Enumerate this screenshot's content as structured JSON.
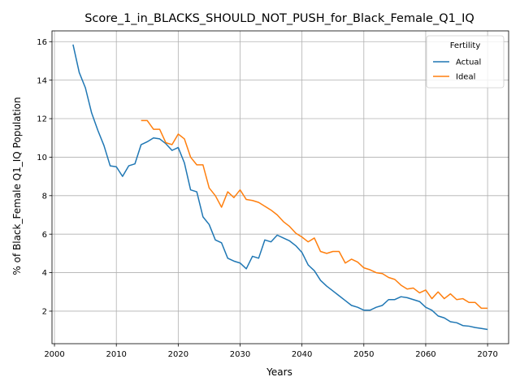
{
  "chart_data": {
    "type": "line",
    "title": "Score_1_in_BLACKS_SHOULD_NOT_PUSH_for_Black_Female_Q1_IQ",
    "xlabel": "Years",
    "ylabel": "% of Black_Female Q1_IQ Population",
    "xlim": [
      1999.6,
      2073.4
    ],
    "ylim": [
      0.31,
      16.56
    ],
    "xticks": [
      2000,
      2010,
      2020,
      2030,
      2040,
      2050,
      2060,
      2070
    ],
    "yticks": [
      2,
      4,
      6,
      8,
      10,
      12,
      14,
      16
    ],
    "grid": true,
    "legend": {
      "title": "Fertility",
      "placement": "top-right"
    },
    "series": [
      {
        "name": "Actual",
        "color": "#1f77b4",
        "x": [
          2003,
          2004,
          2005,
          2006,
          2007,
          2008,
          2009,
          2010,
          2011,
          2012,
          2013,
          2014,
          2015,
          2016,
          2017,
          2018,
          2019,
          2020,
          2021,
          2022,
          2023,
          2024,
          2025,
          2026,
          2027,
          2028,
          2029,
          2030,
          2031,
          2032,
          2033,
          2034,
          2035,
          2036,
          2037,
          2038,
          2039,
          2040,
          2041,
          2042,
          2043,
          2044,
          2045,
          2046,
          2047,
          2048,
          2049,
          2050,
          2051,
          2052,
          2053,
          2054,
          2055,
          2056,
          2057,
          2058,
          2059,
          2060,
          2061,
          2062,
          2063,
          2064,
          2065,
          2066,
          2067,
          2068,
          2069,
          2070
        ],
        "y": [
          15.85,
          14.4,
          13.6,
          12.3,
          11.4,
          10.6,
          9.55,
          9.5,
          9.0,
          9.55,
          9.65,
          10.65,
          10.8,
          11.0,
          10.95,
          10.7,
          10.35,
          10.5,
          9.7,
          8.3,
          8.2,
          6.9,
          6.5,
          5.7,
          5.55,
          4.75,
          4.6,
          4.5,
          4.2,
          4.85,
          4.75,
          5.7,
          5.6,
          5.95,
          5.8,
          5.65,
          5.4,
          5.05,
          4.4,
          4.1,
          3.6,
          3.3,
          3.05,
          2.8,
          2.55,
          2.3,
          2.2,
          2.05,
          2.05,
          2.2,
          2.3,
          2.6,
          2.6,
          2.75,
          2.7,
          2.6,
          2.5,
          2.2,
          2.05,
          1.75,
          1.65,
          1.45,
          1.4,
          1.25,
          1.22,
          1.15,
          1.1,
          1.05
        ]
      },
      {
        "name": "Ideal",
        "color": "#ff7f0e",
        "x": [
          2014,
          2015,
          2016,
          2017,
          2018,
          2019,
          2020,
          2021,
          2022,
          2023,
          2024,
          2025,
          2026,
          2027,
          2028,
          2029,
          2030,
          2031,
          2032,
          2033,
          2034,
          2035,
          2036,
          2037,
          2038,
          2039,
          2040,
          2041,
          2042,
          2043,
          2044,
          2045,
          2046,
          2047,
          2048,
          2049,
          2050,
          2051,
          2052,
          2053,
          2054,
          2055,
          2056,
          2057,
          2058,
          2059,
          2060,
          2061,
          2062,
          2063,
          2064,
          2065,
          2066,
          2067,
          2068,
          2069,
          2070
        ],
        "y": [
          11.9,
          11.9,
          11.45,
          11.45,
          10.75,
          10.65,
          11.2,
          10.95,
          10.0,
          9.6,
          9.6,
          8.4,
          8.0,
          7.4,
          8.2,
          7.9,
          8.3,
          7.8,
          7.75,
          7.65,
          7.45,
          7.25,
          7.0,
          6.65,
          6.4,
          6.05,
          5.85,
          5.6,
          5.8,
          5.1,
          5.0,
          5.1,
          5.1,
          4.5,
          4.7,
          4.55,
          4.25,
          4.15,
          4.0,
          3.95,
          3.75,
          3.65,
          3.35,
          3.15,
          3.2,
          2.95,
          3.1,
          2.65,
          3.0,
          2.65,
          2.9,
          2.6,
          2.65,
          2.45,
          2.45,
          2.15,
          2.15
        ]
      }
    ]
  }
}
